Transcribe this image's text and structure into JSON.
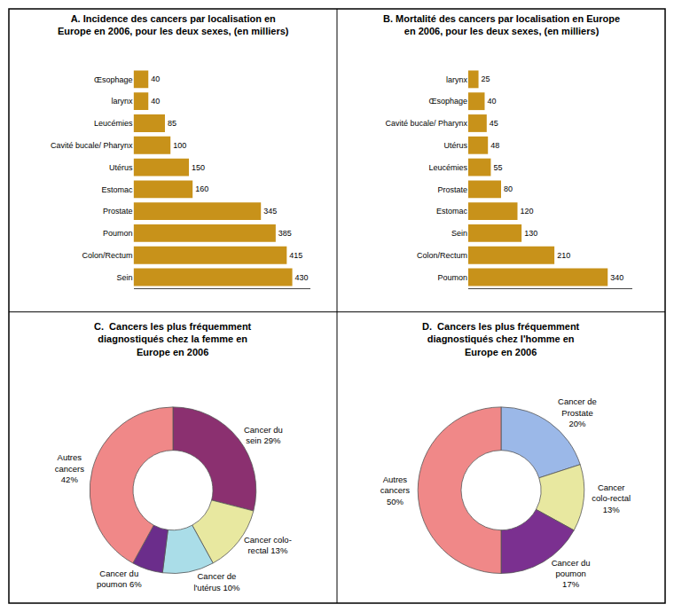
{
  "chart_data": [
    {
      "type": "bar",
      "orientation": "horizontal",
      "title": "A. Incidence des cancers par localisation en\nEurope en 2006, pour les deux sexes, (en milliers)",
      "categories": [
        "Sein",
        "Colon/Rectum",
        "Poumon",
        "Prostate",
        "Estomac",
        "Utérus",
        "Cavité bucale/ Pharynx",
        "Leucémies",
        "larynx",
        "Œsophage"
      ],
      "values": [
        430,
        415,
        385,
        345,
        160,
        150,
        100,
        85,
        40,
        40
      ],
      "color": "#C8921A",
      "xlim": [
        0,
        480
      ],
      "data_labels": true,
      "tick_labels": "y",
      "grid": false
    },
    {
      "type": "bar",
      "orientation": "horizontal",
      "title": "B. Mortalité des cancers par localisation en Europe\nen 2006, pour les deux sexes, (en milliers)",
      "categories": [
        "Poumon",
        "Colon/Rectum",
        "Sein",
        "Estomac",
        "Prostate",
        "Leucémies",
        "Utérus",
        "Cavité bucale/ Pharynx",
        "Œsophage",
        "larynx"
      ],
      "values": [
        340,
        210,
        130,
        120,
        80,
        55,
        48,
        45,
        40,
        25
      ],
      "color": "#C8921A",
      "xlim": [
        0,
        400
      ],
      "data_labels": true,
      "tick_labels": "y",
      "grid": false
    },
    {
      "type": "pie",
      "title": "C.  Cancers les plus fréquemment\ndiagnostiqués chez la femme en\nEurope en 2006",
      "categories": [
        "Cancer du\nsein 29%",
        "Cancer colo-\nrectal 13%",
        "Cancer de\nl'utérus 10%",
        "Cancer du\npoumon 6%",
        "Autres\ncancers\n42%"
      ],
      "values": [
        29,
        13,
        10,
        6,
        42
      ],
      "colors": [
        "#8B3070",
        "#E8E8A0",
        "#AADDE8",
        "#6B2D8B",
        "#F08888"
      ]
    },
    {
      "type": "pie",
      "title": "D.  Cancers les plus fréquemment\ndiagnostiqués chez l'homme en\nEurope en 2006",
      "categories": [
        "Cancer de\nProstate\n20%",
        "Cancer\ncolo-rectal\n13%",
        "Cancer du\npoumon\n17%",
        "Autres\ncancers\n50%"
      ],
      "values": [
        20,
        13,
        17,
        50
      ],
      "colors": [
        "#9BB8E8",
        "#E8E8A0",
        "#7B3090",
        "#F08888"
      ]
    }
  ]
}
